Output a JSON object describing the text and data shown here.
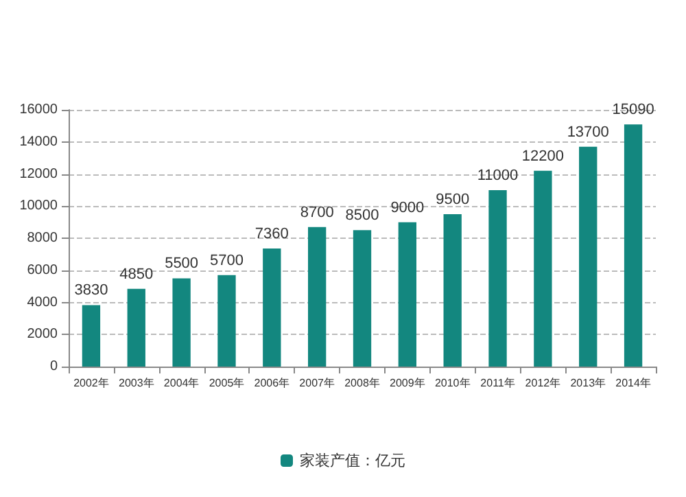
{
  "chart_data": {
    "type": "bar",
    "categories": [
      "2002年",
      "2003年",
      "2004年",
      "2005年",
      "2006年",
      "2007年",
      "2008年",
      "2009年",
      "2010年",
      "2011年",
      "2012年",
      "2013年",
      "2014年"
    ],
    "series": [
      {
        "name": "家装产值：亿元",
        "color": "#13877f",
        "values": [
          3830,
          4850,
          5500,
          5700,
          7360,
          8700,
          8500,
          9000,
          9500,
          11000,
          12200,
          13700,
          15090
        ]
      }
    ],
    "ylim": [
      0,
      16000
    ],
    "yticks": [
      0,
      2000,
      4000,
      6000,
      8000,
      10000,
      12000,
      14000,
      16000
    ],
    "grid": "y",
    "legend": "bottom",
    "data_labels": true
  }
}
